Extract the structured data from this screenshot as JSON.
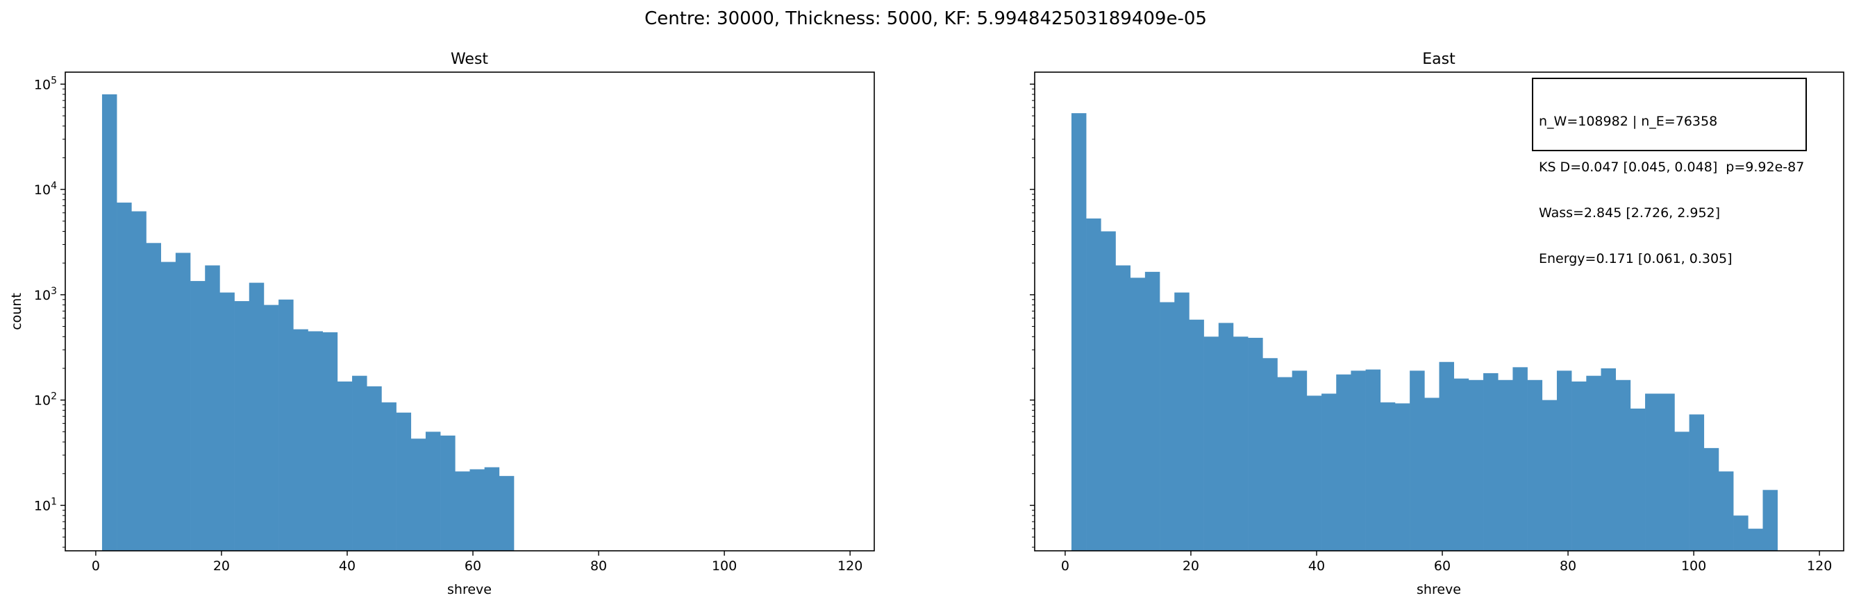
{
  "figure": {
    "suptitle": "Centre: 30000, Thickness: 5000, KF: 5.994842503189409e-05"
  },
  "colors": {
    "bar": "#4a90c2",
    "axis": "#000000"
  },
  "stats_box": {
    "lines": [
      "n_W=108982 | n_E=76358",
      "KS D=0.047 [0.045, 0.048]  p=9.92e-87",
      "Wass=2.845 [2.726, 2.952]",
      "Energy=0.171 [0.061, 0.305]"
    ]
  },
  "chart_data": [
    {
      "type": "bar",
      "subtype": "histogram",
      "title": "West",
      "xlabel": "shreve",
      "ylabel": "count",
      "yscale": "log",
      "xlim": [
        -4.85,
        123.85
      ],
      "ylim": [
        3.7,
        130000
      ],
      "xticks": [
        "0",
        "20",
        "40",
        "60",
        "80",
        "100",
        "120"
      ],
      "yticks": [
        "10^1",
        "10^2",
        "10^3",
        "10^4",
        "10^5"
      ],
      "bin_width": 2.34,
      "bin_start": 1,
      "values": [
        80000,
        7500,
        6200,
        3100,
        2050,
        2500,
        1350,
        1900,
        1050,
        870,
        1300,
        800,
        900,
        470,
        450,
        440,
        150,
        170,
        135,
        95,
        76,
        43,
        50,
        46,
        21,
        22,
        23,
        19
      ]
    },
    {
      "type": "bar",
      "subtype": "histogram",
      "title": "East",
      "xlabel": "shreve",
      "ylabel": "",
      "yscale": "log",
      "xlim": [
        -4.85,
        123.85
      ],
      "ylim": [
        3.7,
        130000
      ],
      "xticks": [
        "0",
        "20",
        "40",
        "60",
        "80",
        "100",
        "120"
      ],
      "yticks": [],
      "bin_width": 2.34,
      "bin_start": 1,
      "values": [
        53000,
        5300,
        4000,
        1900,
        1450,
        1650,
        850,
        1050,
        580,
        400,
        540,
        400,
        390,
        250,
        165,
        190,
        110,
        115,
        175,
        190,
        195,
        95,
        93,
        190,
        105,
        230,
        160,
        155,
        180,
        155,
        205,
        155,
        100,
        190,
        150,
        170,
        200,
        155,
        83,
        115,
        115,
        50,
        73,
        35,
        21,
        8,
        6,
        14
      ]
    }
  ]
}
